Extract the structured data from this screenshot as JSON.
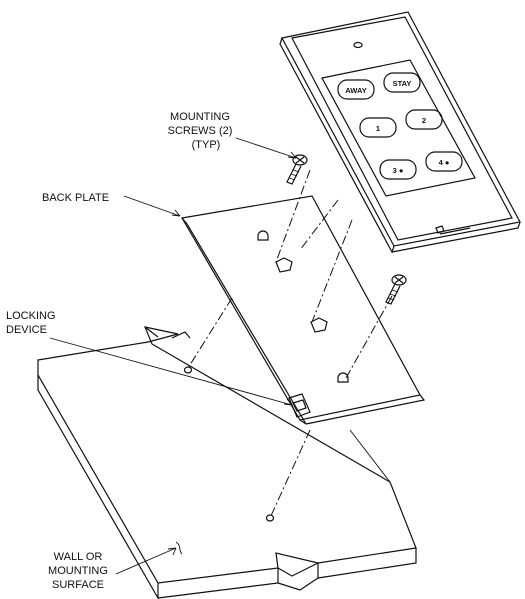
{
  "labels": {
    "mounting_screws_1": "MOUNTING",
    "mounting_screws_2": "SCREWS (2)",
    "mounting_screws_3": "(TYP)",
    "back_plate": "BACK PLATE",
    "locking_device_1": "LOCKING",
    "locking_device_2": "DEVICE",
    "wall_1": "WALL OR",
    "wall_2": "MOUNTING",
    "wall_3": "SURFACE"
  },
  "keypad": {
    "keys": [
      "AWAY",
      "STAY",
      "1",
      "2",
      "3 ●",
      "4 ●"
    ]
  }
}
